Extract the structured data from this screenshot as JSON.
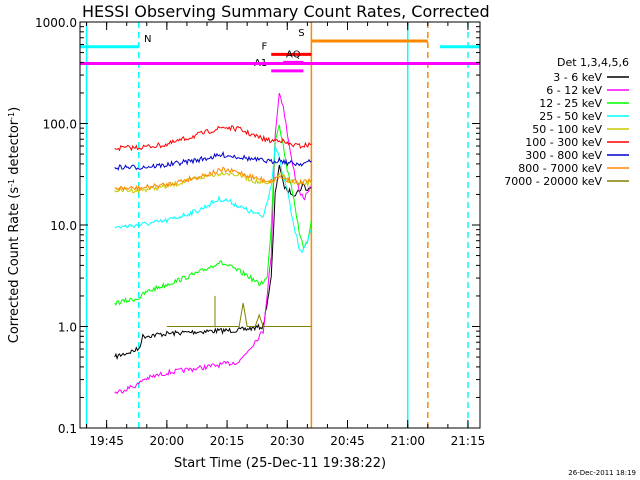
{
  "chart_data": {
    "type": "line",
    "title": "HESSI Observing Summary Count Rates, Corrected",
    "xlabel": "Start Time (25-Dec-11 19:38:22)",
    "ylabel": "Corrected Count Rate (s⁻¹ detector⁻¹)",
    "yscale": "log",
    "ylim": [
      0.1,
      1000
    ],
    "xlim": [
      "19:38:22",
      "21:18:00"
    ],
    "yticks": [
      {
        "value": 0.1,
        "label": "0.1"
      },
      {
        "value": 1,
        "label": "1.0"
      },
      {
        "value": 10,
        "label": "10.0"
      },
      {
        "value": 100,
        "label": "100.0"
      },
      {
        "value": 1000,
        "label": "1000.0"
      }
    ],
    "xticks": [
      {
        "value": "19:45",
        "label": "19:45"
      },
      {
        "value": "20:00",
        "label": "20:00"
      },
      {
        "value": "20:15",
        "label": "20:15"
      },
      {
        "value": "20:30",
        "label": "20:30"
      },
      {
        "value": "20:45",
        "label": "20:45"
      },
      {
        "value": "21:00",
        "label": "21:00"
      },
      {
        "value": "21:15",
        "label": "21:15"
      }
    ],
    "legend_title": "Det 1,3,4,5,6",
    "legend_position": "right",
    "series": [
      {
        "name": "3 - 6 keV",
        "color": "#000000",
        "points": [
          [
            "19:47",
            0.5
          ],
          [
            "19:53",
            0.6
          ],
          [
            "19:54",
            0.8
          ],
          [
            "20:00",
            0.85
          ],
          [
            "20:10",
            0.9
          ],
          [
            "20:18",
            0.92
          ],
          [
            "20:24",
            1.0
          ],
          [
            "20:26",
            3.0
          ],
          [
            "20:27",
            20
          ],
          [
            "20:28",
            40
          ],
          [
            "20:29",
            25
          ],
          [
            "20:30",
            22
          ],
          [
            "20:32",
            20
          ],
          [
            "20:33",
            22
          ],
          [
            "20:34",
            25
          ],
          [
            "20:35",
            22
          ],
          [
            "20:36",
            24
          ]
        ]
      },
      {
        "name": "6 - 12 keV",
        "color": "#ff00ff",
        "points": [
          [
            "19:47",
            0.22
          ],
          [
            "19:53",
            0.27
          ],
          [
            "19:54",
            0.3
          ],
          [
            "20:00",
            0.35
          ],
          [
            "20:10",
            0.4
          ],
          [
            "20:18",
            0.45
          ],
          [
            "20:24",
            0.9
          ],
          [
            "20:26",
            5.0
          ],
          [
            "20:27",
            80
          ],
          [
            "20:28",
            200
          ],
          [
            "20:29",
            150
          ],
          [
            "20:30",
            80
          ],
          [
            "20:31",
            45
          ],
          [
            "20:32",
            30
          ],
          [
            "20:33",
            22
          ],
          [
            "20:34",
            18
          ],
          [
            "20:35",
            20
          ],
          [
            "20:36",
            24
          ]
        ]
      },
      {
        "name": "12 - 25 keV",
        "color": "#00ff00",
        "points": [
          [
            "19:47",
            1.7
          ],
          [
            "19:53",
            1.9
          ],
          [
            "19:55",
            2.2
          ],
          [
            "20:00",
            2.6
          ],
          [
            "20:08",
            3.4
          ],
          [
            "20:13",
            4.3
          ],
          [
            "20:15",
            4.0
          ],
          [
            "20:20",
            3.2
          ],
          [
            "20:23",
            2.6
          ],
          [
            "20:25",
            3.0
          ],
          [
            "20:26",
            10
          ],
          [
            "20:27",
            70
          ],
          [
            "20:28",
            100
          ],
          [
            "20:29",
            60
          ],
          [
            "20:30",
            35
          ],
          [
            "20:31",
            25
          ],
          [
            "20:32",
            15
          ],
          [
            "20:33",
            8
          ],
          [
            "20:34",
            6
          ],
          [
            "20:35",
            7
          ],
          [
            "20:36",
            11
          ]
        ]
      },
      {
        "name": "25 - 50 keV",
        "color": "#00ffff",
        "points": [
          [
            "19:47",
            9.5
          ],
          [
            "19:53",
            10
          ],
          [
            "20:00",
            11
          ],
          [
            "20:08",
            14
          ],
          [
            "20:13",
            18
          ],
          [
            "20:15",
            17.5
          ],
          [
            "20:20",
            14
          ],
          [
            "20:24",
            12
          ],
          [
            "20:26",
            25
          ],
          [
            "20:27",
            60
          ],
          [
            "20:28",
            45
          ],
          [
            "20:29",
            30
          ],
          [
            "20:30",
            22
          ],
          [
            "20:31",
            13
          ],
          [
            "20:32",
            8.5
          ],
          [
            "20:33",
            6
          ],
          [
            "20:34",
            5.5
          ],
          [
            "20:35",
            7
          ],
          [
            "20:36",
            9
          ]
        ]
      },
      {
        "name": "50 - 100 keV",
        "color": "#c8c800",
        "points": [
          [
            "19:47",
            22
          ],
          [
            "19:53",
            22
          ],
          [
            "20:00",
            24
          ],
          [
            "20:08",
            29
          ],
          [
            "20:14",
            33
          ],
          [
            "20:18",
            31
          ],
          [
            "20:22",
            27
          ],
          [
            "20:25",
            25
          ],
          [
            "20:27",
            28
          ],
          [
            "20:28",
            32
          ],
          [
            "20:30",
            28
          ],
          [
            "20:33",
            25
          ],
          [
            "20:36",
            26
          ]
        ]
      },
      {
        "name": "100 - 300 keV",
        "color": "#ff0000",
        "points": [
          [
            "19:47",
            57
          ],
          [
            "19:53",
            58
          ],
          [
            "20:00",
            62
          ],
          [
            "20:08",
            78
          ],
          [
            "20:14",
            92
          ],
          [
            "20:18",
            88
          ],
          [
            "20:22",
            75
          ],
          [
            "20:26",
            67
          ],
          [
            "20:28",
            70
          ],
          [
            "20:30",
            63
          ],
          [
            "20:33",
            60
          ],
          [
            "20:36",
            62
          ]
        ]
      },
      {
        "name": "300 - 800 keV",
        "color": "#0000cc",
        "points": [
          [
            "19:47",
            37
          ],
          [
            "19:53",
            37
          ],
          [
            "20:00",
            39
          ],
          [
            "20:08",
            44
          ],
          [
            "20:14",
            49
          ],
          [
            "20:18",
            47
          ],
          [
            "20:22",
            44
          ],
          [
            "20:26",
            42
          ],
          [
            "20:28",
            44
          ],
          [
            "20:30",
            41
          ],
          [
            "20:33",
            40
          ],
          [
            "20:36",
            42
          ]
        ]
      },
      {
        "name": "800 - 7000 keV",
        "color": "#ff8800",
        "points": [
          [
            "19:47",
            23
          ],
          [
            "19:53",
            23
          ],
          [
            "20:00",
            25
          ],
          [
            "20:08",
            30
          ],
          [
            "20:14",
            35
          ],
          [
            "20:18",
            33
          ],
          [
            "20:22",
            29
          ],
          [
            "20:26",
            27
          ],
          [
            "20:28",
            30
          ],
          [
            "20:30",
            28
          ],
          [
            "20:33",
            26
          ],
          [
            "20:36",
            27
          ]
        ]
      },
      {
        "name": "7000 - 20000 keV",
        "color": "#808000",
        "points": [
          [
            "20:00",
            1.0
          ],
          [
            "20:10",
            1.0
          ],
          [
            "20:12",
            1.0
          ],
          [
            "20:12",
            2.0
          ],
          [
            "20:12",
            1.0
          ],
          [
            "20:18",
            1.0
          ],
          [
            "20:19",
            1.7
          ],
          [
            "20:20",
            1.0
          ],
          [
            "20:22",
            1.0
          ],
          [
            "20:23",
            1.3
          ],
          [
            "20:24",
            1.0
          ],
          [
            "20:36",
            1.0
          ]
        ]
      }
    ],
    "flags": [
      {
        "label": "N",
        "color": "#00ffff",
        "type": "segments",
        "value": 570,
        "segments": [
          [
            "19:38:22",
            "19:53"
          ],
          [
            "21:08",
            "21:18"
          ]
        ]
      },
      {
        "label": "S",
        "color": "#ff8800",
        "type": "segment",
        "value": 650,
        "segments": [
          [
            "20:36",
            "21:05"
          ]
        ]
      },
      {
        "label": "F",
        "color": "#ff0000",
        "type": "segment",
        "value": 480,
        "segments": [
          [
            "20:26",
            "20:36"
          ]
        ]
      },
      {
        "label": "AQ",
        "color": "#ff00ff",
        "type": "segment",
        "value": 400,
        "segments": [
          [
            "20:29",
            "20:34"
          ]
        ]
      },
      {
        "label": "A1",
        "color": "#ff00ff",
        "type": "segment",
        "value": 330,
        "segments": [
          [
            "20:26",
            "20:34"
          ]
        ]
      },
      {
        "label": "",
        "color": "#ff00ff",
        "type": "full",
        "value": 390,
        "segments": [
          [
            "19:38:22",
            "21:18"
          ]
        ]
      }
    ],
    "vlines": [
      {
        "time": "19:40",
        "color": "#00ffff",
        "style": "solid"
      },
      {
        "time": "19:53",
        "color": "#00ffff",
        "style": "dashed"
      },
      {
        "time": "20:36",
        "color": "#ff8800",
        "style": "solid"
      },
      {
        "time": "21:00",
        "color": "#00ffff",
        "style": "solid"
      },
      {
        "time": "21:05",
        "color": "#ff8800",
        "style": "dashed"
      },
      {
        "time": "21:15",
        "color": "#00ffff",
        "style": "dashed"
      }
    ],
    "footer": "26-Dec-2011 18:19"
  }
}
